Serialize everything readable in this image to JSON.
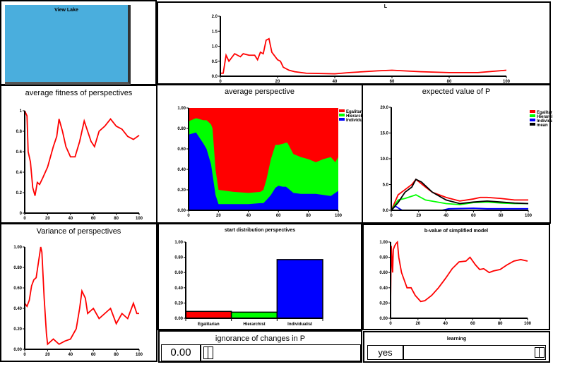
{
  "view_lake": {
    "label": "View Lake"
  },
  "colors": {
    "egal": "#ff0000",
    "hier": "#00ff00",
    "indiv": "#0000ff",
    "mean": "#000000",
    "lake": "#4aaedd"
  },
  "chart_data": [
    {
      "id": "L",
      "type": "line",
      "title": "L",
      "ylim": [
        0,
        2
      ],
      "yticks": [
        "0.0",
        "0.5",
        "1.0",
        "1.5",
        "2.0"
      ],
      "xticks": [
        "0",
        "20",
        "40",
        "60",
        "80",
        "100"
      ],
      "xlim": [
        0,
        100
      ],
      "series": [
        {
          "name": "L",
          "color": "#ff0000",
          "x": [
            0,
            1,
            2,
            3,
            5,
            7,
            8,
            10,
            12,
            13,
            14,
            15,
            16,
            17,
            18,
            20,
            21,
            22,
            24,
            26,
            30,
            40,
            45,
            50,
            55,
            60,
            70,
            80,
            90,
            100
          ],
          "y": [
            0.1,
            0.1,
            0.7,
            0.5,
            0.75,
            0.65,
            0.75,
            0.7,
            0.7,
            0.55,
            0.8,
            0.75,
            1.2,
            1.25,
            0.8,
            0.55,
            0.5,
            0.3,
            0.2,
            0.15,
            0.1,
            0.08,
            0.12,
            0.15,
            0.18,
            0.2,
            0.15,
            0.12,
            0.12,
            0.2
          ]
        }
      ]
    },
    {
      "id": "fitness",
      "type": "line",
      "title": "average fitness of perspectives",
      "ylim": [
        0,
        1
      ],
      "yticks": [
        "0",
        "0.2",
        "0.4",
        "0.6",
        "0.8",
        "1"
      ],
      "xticks": [
        "0",
        "20",
        "40",
        "60",
        "80",
        "100"
      ],
      "xlim": [
        0,
        100
      ],
      "series": [
        {
          "name": "fitness",
          "color": "#ff0000",
          "x": [
            0,
            2,
            3,
            5,
            7,
            9,
            11,
            13,
            16,
            20,
            25,
            28,
            30,
            33,
            36,
            40,
            44,
            48,
            52,
            55,
            58,
            61,
            65,
            70,
            75,
            80,
            85,
            90,
            95,
            100
          ],
          "y": [
            1.0,
            0.95,
            0.6,
            0.5,
            0.25,
            0.17,
            0.3,
            0.28,
            0.35,
            0.45,
            0.65,
            0.75,
            0.92,
            0.8,
            0.65,
            0.55,
            0.55,
            0.7,
            0.9,
            0.8,
            0.7,
            0.65,
            0.8,
            0.85,
            0.92,
            0.85,
            0.82,
            0.75,
            0.72,
            0.76
          ]
        }
      ]
    },
    {
      "id": "avgpersp",
      "type": "area",
      "title": "average perspective",
      "ylim": [
        0,
        1
      ],
      "yticks": [
        "0.00",
        "0.20",
        "0.40",
        "0.60",
        "0.80",
        "1.00"
      ],
      "xticks": [
        "0",
        "20",
        "40",
        "60",
        "80",
        "100"
      ],
      "xlim": [
        0,
        100
      ],
      "legend": [
        "Egalitarian",
        "Hierarchist",
        "Individualist"
      ],
      "x": [
        0,
        5,
        10,
        12,
        15,
        16,
        18,
        20,
        30,
        40,
        48,
        50,
        52,
        55,
        58,
        60,
        63,
        65,
        66,
        70,
        75,
        80,
        85,
        90,
        95,
        98,
        100
      ],
      "indiv": [
        0.74,
        0.76,
        0.65,
        0.6,
        0.45,
        0.35,
        0.15,
        0.06,
        0.06,
        0.06,
        0.07,
        0.07,
        0.1,
        0.15,
        0.22,
        0.24,
        0.23,
        0.23,
        0.22,
        0.17,
        0.16,
        0.16,
        0.16,
        0.15,
        0.14,
        0.17,
        0.19
      ],
      "indiv_plus_hier": [
        0.87,
        0.9,
        0.88,
        0.88,
        0.84,
        0.8,
        0.4,
        0.2,
        0.18,
        0.17,
        0.18,
        0.2,
        0.3,
        0.5,
        0.64,
        0.64,
        0.65,
        0.66,
        0.66,
        0.55,
        0.52,
        0.5,
        0.47,
        0.5,
        0.52,
        0.47,
        0.52
      ]
    },
    {
      "id": "expP",
      "type": "line",
      "title": "expected value of P",
      "ylim": [
        0,
        20
      ],
      "yticks": [
        "0.0",
        "5.0",
        "10.0",
        "15.0",
        "20.0"
      ],
      "xticks": [
        "0",
        "20",
        "40",
        "60",
        "80",
        "100"
      ],
      "xlim": [
        0,
        100
      ],
      "legend": [
        "Egalitarian",
        "Hierarchist",
        "Individualist",
        "mean"
      ],
      "series": [
        {
          "name": "Egalitarian",
          "color": "#ff0000",
          "x": [
            0,
            5,
            10,
            15,
            18,
            25,
            30,
            40,
            50,
            60,
            65,
            70,
            80,
            90,
            100
          ],
          "y": [
            0,
            3,
            4,
            5,
            6,
            4.5,
            3.5,
            2.5,
            1.8,
            2.2,
            2.5,
            2.5,
            2.3,
            2,
            2
          ]
        },
        {
          "name": "Hierarchist",
          "color": "#00ff00",
          "x": [
            0,
            5,
            10,
            18,
            25,
            40,
            50,
            60,
            70,
            80,
            90,
            100
          ],
          "y": [
            0,
            2,
            2.3,
            3,
            2,
            1.3,
            1.1,
            1.5,
            1.6,
            1.4,
            1.3,
            1.3
          ]
        },
        {
          "name": "Individualist",
          "color": "#0000ff",
          "x": [
            0,
            3,
            6,
            8,
            37,
            42,
            60,
            70,
            100
          ],
          "y": [
            0,
            0.8,
            0.3,
            0,
            0,
            0.3,
            0.4,
            0.3,
            0.3
          ]
        },
        {
          "name": "mean",
          "color": "#000000",
          "x": [
            0,
            5,
            10,
            15,
            18,
            22,
            30,
            40,
            50,
            60,
            70,
            80,
            90,
            100
          ],
          "y": [
            0,
            1.5,
            3.5,
            4.5,
            6,
            5.5,
            3.5,
            2,
            1.3,
            1.6,
            1.8,
            1.6,
            1.4,
            1.3
          ]
        }
      ]
    },
    {
      "id": "variance",
      "type": "line",
      "title": "Variance of perspectives",
      "ylim": [
        0,
        1
      ],
      "yticks": [
        "0.00",
        "0.20",
        "0.40",
        "0.60",
        "0.80",
        "1.00"
      ],
      "xticks": [
        "0",
        "20",
        "40",
        "60",
        "80",
        "100"
      ],
      "xlim": [
        0,
        100
      ],
      "series": [
        {
          "name": "variance",
          "color": "#ff0000",
          "x": [
            0,
            2,
            4,
            6,
            8,
            10,
            12,
            14,
            15,
            17,
            19,
            20,
            25,
            30,
            35,
            40,
            45,
            48,
            50,
            53,
            55,
            60,
            65,
            70,
            75,
            80,
            85,
            90,
            95,
            98,
            100
          ],
          "y": [
            0.45,
            0.42,
            0.48,
            0.62,
            0.68,
            0.7,
            0.85,
            1.0,
            0.95,
            0.5,
            0.15,
            0.05,
            0.1,
            0.05,
            0.08,
            0.1,
            0.2,
            0.4,
            0.57,
            0.5,
            0.35,
            0.4,
            0.3,
            0.35,
            0.4,
            0.25,
            0.35,
            0.3,
            0.45,
            0.35,
            0.35
          ]
        }
      ]
    },
    {
      "id": "startdist",
      "type": "bar",
      "title": "start distribution perspectives",
      "ylim": [
        0,
        1
      ],
      "yticks": [
        "0.00",
        "0.20",
        "0.40",
        "0.60",
        "0.80",
        "1.00"
      ],
      "categories": [
        "Egalitarian",
        "Hierarchist",
        "Individualist"
      ],
      "values": [
        0.09,
        0.08,
        0.77
      ],
      "bar_colors": [
        "#ff0000",
        "#00ff00",
        "#0000ff"
      ]
    },
    {
      "id": "bvalue",
      "type": "line",
      "title": "b-value of simplified model",
      "ylim": [
        0,
        1
      ],
      "yticks": [
        "0.00",
        "0.20",
        "0.40",
        "0.60",
        "0.80",
        "1.00"
      ],
      "xticks": [
        "0",
        "20",
        "40",
        "60",
        "80",
        "100"
      ],
      "xlim": [
        0,
        100
      ],
      "series": [
        {
          "name": "b-value",
          "color": "#ff0000",
          "x": [
            0,
            0.5,
            1.5,
            2,
            3,
            4,
            5,
            6,
            8,
            10,
            12,
            15,
            18,
            22,
            25,
            30,
            35,
            40,
            45,
            50,
            55,
            58,
            62,
            65,
            68,
            72,
            75,
            80,
            85,
            90,
            95,
            100
          ],
          "y": [
            0.2,
            0.95,
            0.6,
            0.9,
            0.95,
            0.98,
            1.0,
            0.8,
            0.6,
            0.5,
            0.4,
            0.4,
            0.3,
            0.22,
            0.23,
            0.3,
            0.4,
            0.52,
            0.65,
            0.74,
            0.75,
            0.8,
            0.7,
            0.64,
            0.65,
            0.6,
            0.62,
            0.64,
            0.7,
            0.75,
            0.77,
            0.75
          ]
        }
      ]
    }
  ],
  "ignorance": {
    "title": "ignorance of changes in P",
    "value": "0.00"
  },
  "learning": {
    "title": "learning",
    "value": "yes"
  }
}
